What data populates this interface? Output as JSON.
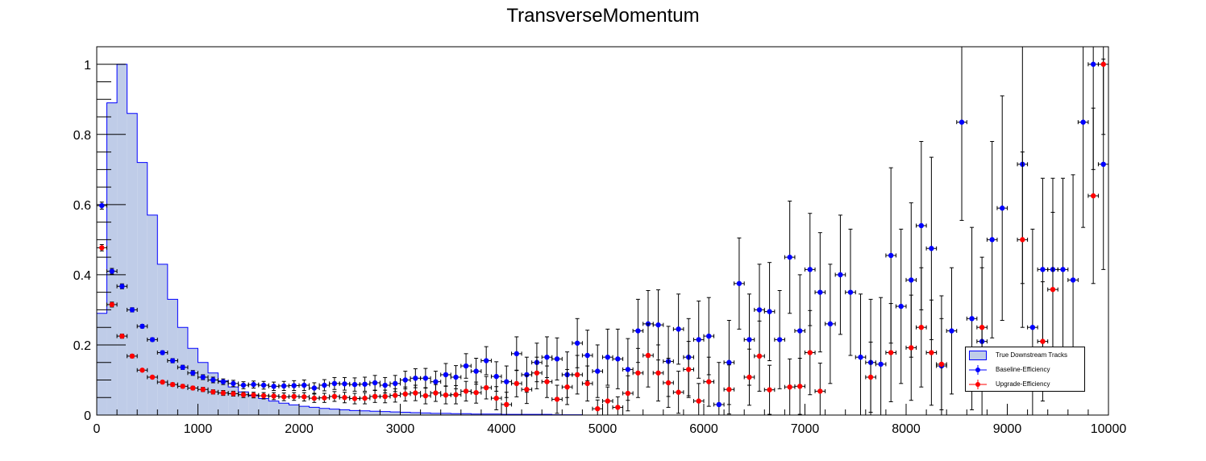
{
  "chart_data": {
    "type": "scatter",
    "title": "TransverseMomentum",
    "xlabel": "",
    "ylabel": "",
    "xlim": [
      0,
      10000
    ],
    "ylim": [
      0,
      1.05
    ],
    "x_ticks": [
      "0",
      "1000",
      "2000",
      "3000",
      "4000",
      "5000",
      "6000",
      "7000",
      "8000",
      "9000",
      "10000"
    ],
    "y_ticks": [
      "0",
      "0.2",
      "0.4",
      "0.6",
      "0.8",
      "1"
    ],
    "bin_width": 100,
    "grid": false,
    "legend_position": "bottom-right",
    "colors": {
      "histogram_fill": "#bfcce8",
      "histogram_line": "#0000ff",
      "baseline": "#0000ff",
      "upgrade": "#ff0000"
    },
    "histogram": {
      "name": "True Downstream Tracks",
      "values": [
        0.29,
        0.89,
        1.0,
        0.86,
        0.72,
        0.57,
        0.43,
        0.33,
        0.25,
        0.19,
        0.15,
        0.12,
        0.098,
        0.08,
        0.066,
        0.055,
        0.047,
        0.04,
        0.034,
        0.029,
        0.025,
        0.022,
        0.019,
        0.017,
        0.015,
        0.013,
        0.012,
        0.011,
        0.01,
        0.009,
        0.008,
        0.007,
        0.006,
        0.005,
        0.005,
        0.004,
        0.004,
        0.003,
        0.003,
        0.003,
        0.002,
        0.002,
        0.002,
        0.002,
        0.002,
        0.001,
        0.001,
        0.001,
        0,
        0,
        0,
        0,
        0,
        0,
        0,
        0,
        0,
        0,
        0,
        0,
        0,
        0,
        0,
        0,
        0,
        0,
        0,
        0,
        0,
        0,
        0,
        0,
        0,
        0,
        0,
        0,
        0,
        0,
        0,
        0,
        0,
        0,
        0,
        0,
        0,
        0,
        0,
        0,
        0,
        0,
        0,
        0,
        0,
        0,
        0,
        0,
        0,
        0,
        0,
        0
      ]
    },
    "series": [
      {
        "name": "Baseline-Efficiency",
        "x": [
          50,
          150,
          250,
          350,
          450,
          550,
          650,
          750,
          850,
          950,
          1050,
          1150,
          1250,
          1350,
          1450,
          1550,
          1650,
          1750,
          1850,
          1950,
          2050,
          2150,
          2250,
          2350,
          2450,
          2550,
          2650,
          2750,
          2850,
          2950,
          3050,
          3150,
          3250,
          3350,
          3450,
          3550,
          3650,
          3750,
          3850,
          3950,
          4050,
          4150,
          4250,
          4350,
          4450,
          4550,
          4650,
          4750,
          4850,
          4950,
          5050,
          5150,
          5250,
          5350,
          5450,
          5550,
          5650,
          5750,
          5850,
          5950,
          6050,
          6150,
          6250,
          6350,
          6450,
          6550,
          6650,
          6750,
          6850,
          6950,
          7050,
          7150,
          7250,
          7350,
          7450,
          7550,
          7650,
          7750,
          7850,
          7950,
          8050,
          8150,
          8250,
          8350,
          8450,
          8550,
          8650,
          8750,
          8850,
          8950,
          9150,
          9250,
          9350,
          9450,
          9550,
          9650,
          9750,
          9850,
          9950
        ],
        "y": [
          0.597,
          0.41,
          0.367,
          0.3,
          0.253,
          0.215,
          0.178,
          0.155,
          0.136,
          0.12,
          0.108,
          0.1,
          0.095,
          0.09,
          0.085,
          0.087,
          0.085,
          0.082,
          0.083,
          0.084,
          0.085,
          0.077,
          0.085,
          0.09,
          0.089,
          0.087,
          0.088,
          0.092,
          0.085,
          0.09,
          0.1,
          0.105,
          0.105,
          0.095,
          0.115,
          0.108,
          0.14,
          0.125,
          0.155,
          0.11,
          0.095,
          0.175,
          0.115,
          0.15,
          0.165,
          0.16,
          0.115,
          0.205,
          0.17,
          0.125,
          0.165,
          0.16,
          0.13,
          0.24,
          0.26,
          0.257,
          0.153,
          0.245,
          0.165,
          0.215,
          0.225,
          0.03,
          0.15,
          0.375,
          0.215,
          0.3,
          0.295,
          0.215,
          0.45,
          0.24,
          0.415,
          0.35,
          0.26,
          0.4,
          0.35,
          0.165,
          0.15,
          0.145,
          0.455,
          0.31,
          0.385,
          0.54,
          0.475,
          0.14,
          0.24,
          0.835,
          0.275,
          0.21,
          0.5,
          0.59,
          0.715,
          0.25,
          0.415,
          0.415,
          0.415,
          0.385,
          0.835,
          1.0,
          0.715
        ],
        "err": [
          0.01,
          0.008,
          0.007,
          0.006,
          0.005,
          0.005,
          0.005,
          0.006,
          0.006,
          0.007,
          0.007,
          0.008,
          0.008,
          0.009,
          0.01,
          0.01,
          0.011,
          0.012,
          0.013,
          0.014,
          0.015,
          0.015,
          0.016,
          0.017,
          0.018,
          0.019,
          0.02,
          0.021,
          0.022,
          0.023,
          0.025,
          0.027,
          0.028,
          0.03,
          0.032,
          0.033,
          0.035,
          0.037,
          0.04,
          0.042,
          0.045,
          0.048,
          0.05,
          0.055,
          0.058,
          0.06,
          0.065,
          0.07,
          0.072,
          0.075,
          0.08,
          0.085,
          0.088,
          0.09,
          0.095,
          0.1,
          0.1,
          0.1,
          0.11,
          0.11,
          0.11,
          0.12,
          0.12,
          0.13,
          0.13,
          0.13,
          0.14,
          0.14,
          0.16,
          0.16,
          0.16,
          0.17,
          0.17,
          0.17,
          0.18,
          0.18,
          0.18,
          0.19,
          0.25,
          0.22,
          0.22,
          0.24,
          0.26,
          0.2,
          0.18,
          0.28,
          0.26,
          0.24,
          0.28,
          0.32,
          0.34,
          0.28,
          0.26,
          0.26,
          0.26,
          0.3,
          0.3,
          0.3,
          0.3
        ]
      },
      {
        "name": "Upgrade-Efficiency",
        "x": [
          50,
          150,
          250,
          350,
          450,
          550,
          650,
          750,
          850,
          950,
          1050,
          1150,
          1250,
          1350,
          1450,
          1550,
          1650,
          1750,
          1850,
          1950,
          2050,
          2150,
          2250,
          2350,
          2450,
          2550,
          2650,
          2750,
          2850,
          2950,
          3050,
          3150,
          3250,
          3350,
          3450,
          3550,
          3650,
          3750,
          3850,
          3950,
          4050,
          4150,
          4250,
          4350,
          4450,
          4550,
          4650,
          4750,
          4850,
          4950,
          5050,
          5150,
          5250,
          5350,
          5450,
          5550,
          5650,
          5750,
          5850,
          5950,
          6050,
          6250,
          6450,
          6550,
          6650,
          6850,
          6950,
          7050,
          7150,
          7650,
          7850,
          8050,
          8150,
          8250,
          8350,
          8750,
          9150,
          9350,
          9450,
          9850,
          9950
        ],
        "y": [
          0.477,
          0.315,
          0.225,
          0.168,
          0.128,
          0.108,
          0.094,
          0.087,
          0.082,
          0.077,
          0.073,
          0.066,
          0.063,
          0.061,
          0.058,
          0.057,
          0.055,
          0.054,
          0.052,
          0.053,
          0.052,
          0.048,
          0.049,
          0.053,
          0.05,
          0.047,
          0.048,
          0.053,
          0.053,
          0.056,
          0.06,
          0.063,
          0.055,
          0.063,
          0.057,
          0.058,
          0.068,
          0.064,
          0.078,
          0.048,
          0.03,
          0.09,
          0.073,
          0.12,
          0.095,
          0.045,
          0.08,
          0.115,
          0.09,
          0.018,
          0.04,
          0.022,
          0.062,
          0.12,
          0.17,
          0.12,
          0.092,
          0.065,
          0.13,
          0.04,
          0.095,
          0.073,
          0.108,
          0.168,
          0.072,
          0.08,
          0.082,
          0.178,
          0.068,
          0.108,
          0.178,
          0.192,
          0.25,
          0.178,
          0.145,
          0.25,
          0.5,
          0.21,
          0.358,
          0.625,
          1.0
        ],
        "err": [
          0.009,
          0.007,
          0.006,
          0.005,
          0.004,
          0.004,
          0.004,
          0.005,
          0.005,
          0.005,
          0.006,
          0.006,
          0.007,
          0.007,
          0.008,
          0.008,
          0.009,
          0.01,
          0.011,
          0.011,
          0.012,
          0.012,
          0.013,
          0.014,
          0.015,
          0.015,
          0.016,
          0.017,
          0.018,
          0.019,
          0.02,
          0.022,
          0.023,
          0.024,
          0.025,
          0.026,
          0.028,
          0.03,
          0.032,
          0.033,
          0.035,
          0.038,
          0.04,
          0.045,
          0.045,
          0.04,
          0.05,
          0.055,
          0.05,
          0.025,
          0.04,
          0.03,
          0.05,
          0.07,
          0.09,
          0.08,
          0.07,
          0.06,
          0.08,
          0.05,
          0.07,
          0.07,
          0.08,
          0.1,
          0.07,
          0.08,
          0.08,
          0.12,
          0.08,
          0.1,
          0.14,
          0.15,
          0.17,
          0.15,
          0.13,
          0.17,
          0.25,
          0.17,
          0.22,
          0.25,
          0.2
        ]
      }
    ]
  }
}
